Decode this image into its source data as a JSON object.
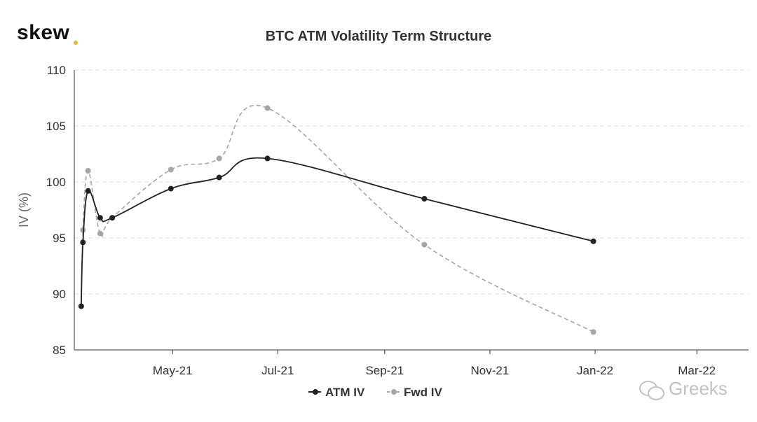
{
  "brand": {
    "logo_text": "skew",
    "dot_color": "#f0b429"
  },
  "chart_data": {
    "type": "line",
    "title": "BTC ATM Volatility Term Structure",
    "ylabel": "IV (%)",
    "xlabel": "",
    "ylim": [
      85,
      110
    ],
    "yticks": [
      85,
      90,
      95,
      100,
      105,
      110
    ],
    "xlim": [
      "2021-03-05",
      "2022-03-31"
    ],
    "xticks": [
      {
        "date": "2021-05-01",
        "label": "May-21"
      },
      {
        "date": "2021-07-01",
        "label": "Jul-21"
      },
      {
        "date": "2021-09-01",
        "label": "Sep-21"
      },
      {
        "date": "2021-11-01",
        "label": "Nov-21"
      },
      {
        "date": "2022-01-01",
        "label": "Jan-22"
      },
      {
        "date": "2022-03-01",
        "label": "Mar-22"
      }
    ],
    "grid": true,
    "legend_position": "bottom-center",
    "series": [
      {
        "name": "ATM IV",
        "color": "#222222",
        "dashed": false,
        "points": [
          {
            "x": "2021-03-09",
            "y": 88.9
          },
          {
            "x": "2021-03-10",
            "y": 94.6
          },
          {
            "x": "2021-03-13",
            "y": 99.2
          },
          {
            "x": "2021-03-20",
            "y": 96.8
          },
          {
            "x": "2021-03-27",
            "y": 96.8
          },
          {
            "x": "2021-04-30",
            "y": 99.4
          },
          {
            "x": "2021-05-28",
            "y": 100.4
          },
          {
            "x": "2021-06-25",
            "y": 102.1
          },
          {
            "x": "2021-09-24",
            "y": 98.5
          },
          {
            "x": "2021-12-31",
            "y": 94.7
          }
        ]
      },
      {
        "name": "Fwd IV",
        "color": "#a6a6a6",
        "dashed": true,
        "points": [
          {
            "x": "2021-03-09",
            "y": 88.9
          },
          {
            "x": "2021-03-10",
            "y": 95.7
          },
          {
            "x": "2021-03-13",
            "y": 101.0
          },
          {
            "x": "2021-03-20",
            "y": 95.4
          },
          {
            "x": "2021-03-27",
            "y": 96.8
          },
          {
            "x": "2021-04-30",
            "y": 101.1
          },
          {
            "x": "2021-05-28",
            "y": 102.1
          },
          {
            "x": "2021-06-25",
            "y": 106.6
          },
          {
            "x": "2021-09-24",
            "y": 94.4
          },
          {
            "x": "2021-12-31",
            "y": 86.6
          }
        ]
      }
    ]
  },
  "watermark": {
    "text": "Greeks",
    "icon": "wechat-icon"
  }
}
